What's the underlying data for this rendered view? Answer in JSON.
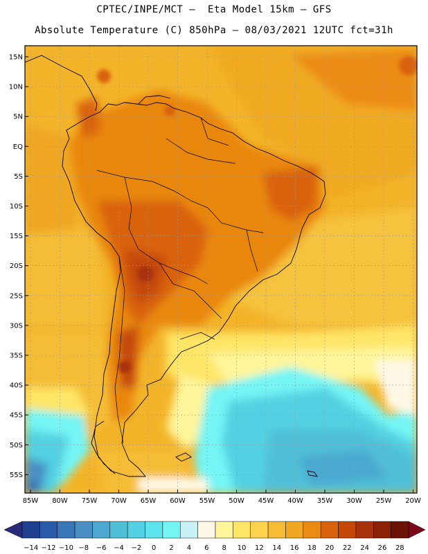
{
  "header": {
    "title_line1": "CPTEC/INPE/MCT –  Eta Model 15km – GFS",
    "title_line2": "Absolute Temperature (C) 850hPa – 08/03/2021 12UTC fct=31h"
  },
  "map": {
    "region": "South America",
    "lat_labels": [
      "15N",
      "10N",
      "5N",
      "EQ",
      "5S",
      "10S",
      "15S",
      "20S",
      "25S",
      "30S",
      "35S",
      "40S",
      "45S",
      "50S",
      "55S"
    ],
    "lon_labels": [
      "85W",
      "80W",
      "75W",
      "70W",
      "65W",
      "60W",
      "55W",
      "50W",
      "45W",
      "40W",
      "35W",
      "30W",
      "25W",
      "20W"
    ],
    "lat_values": [
      15,
      10,
      5,
      0,
      -5,
      -10,
      -15,
      -20,
      -25,
      -30,
      -35,
      -40,
      -45,
      -50,
      -55
    ],
    "lon_values": [
      -85,
      -80,
      -75,
      -70,
      -65,
      -60,
      -55,
      -50,
      -45,
      -40,
      -35,
      -30,
      -25,
      -20
    ]
  },
  "colorbar": {
    "labels": [
      "-14",
      "-12",
      "-10",
      "-8",
      "-6",
      "-4",
      "-2",
      "0",
      "2",
      "4",
      "6",
      "8",
      "10",
      "12",
      "14",
      "16",
      "18",
      "20",
      "22",
      "24",
      "26",
      "28"
    ],
    "colors": [
      "#1f3f8f",
      "#2a5aa8",
      "#3876b8",
      "#4a90c4",
      "#4ca8cf",
      "#4fbfd8",
      "#53d1e2",
      "#5ee4ec",
      "#74f5f5",
      "#c9f2f7",
      "#fff8e6",
      "#fff59a",
      "#ffe566",
      "#ffd24d",
      "#f5bd35",
      "#f0a722",
      "#ec8b14",
      "#d9620c",
      "#c44808",
      "#a83207",
      "#8c2205",
      "#6b1203"
    ],
    "low_arrow_color": "#2a2a7a",
    "high_arrow_color": "#7a0a1a"
  }
}
